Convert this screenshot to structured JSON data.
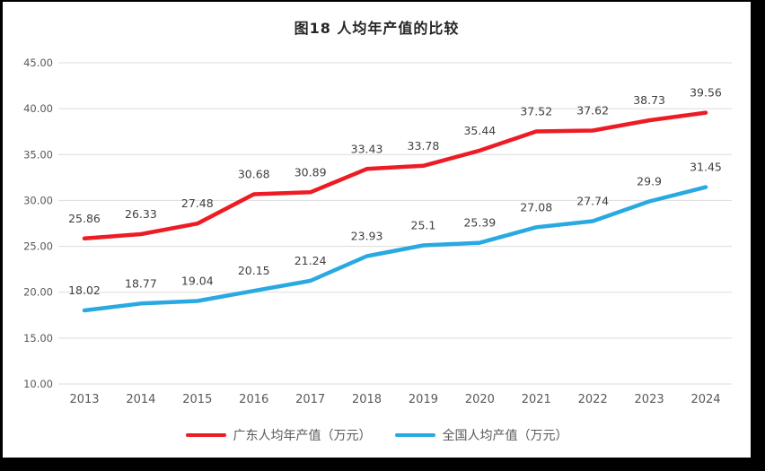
{
  "title": "图18 人均年产值的比较",
  "chart_data": {
    "type": "line",
    "title": "图18 人均年产值的比较",
    "categories": [
      "2013",
      "2014",
      "2015",
      "2016",
      "2017",
      "2018",
      "2019",
      "2020",
      "2021",
      "2022",
      "2023",
      "2024"
    ],
    "series": [
      {
        "name": "广东人均年产值（万元）",
        "color": "#ED1C24",
        "values": [
          25.86,
          26.33,
          27.48,
          30.68,
          30.89,
          33.43,
          33.78,
          35.44,
          37.52,
          37.62,
          38.73,
          39.56
        ]
      },
      {
        "name": "全国人均产值（万元）",
        "color": "#29A9E1",
        "values": [
          18.02,
          18.77,
          19.04,
          20.15,
          21.24,
          23.93,
          25.1,
          25.39,
          27.08,
          27.74,
          29.9,
          31.45
        ]
      }
    ],
    "ylim": [
      10,
      45
    ],
    "yticks": [
      45,
      40,
      35,
      30,
      25,
      20,
      15,
      10
    ],
    "ytick_labels": [
      "45.00",
      "40.00",
      "35.00",
      "30.00",
      "25.00",
      "20.00",
      "15.00",
      "10.00"
    ],
    "grid": true,
    "data_labels": true,
    "legend_position": "bottom"
  },
  "styles": {
    "grid_color": "#DCDCDC",
    "tick_color": "#595959",
    "data_label_color": "#404040",
    "title_color": "#262626",
    "frame_color": "#000000",
    "canvas_color": "#FFFFFF"
  }
}
